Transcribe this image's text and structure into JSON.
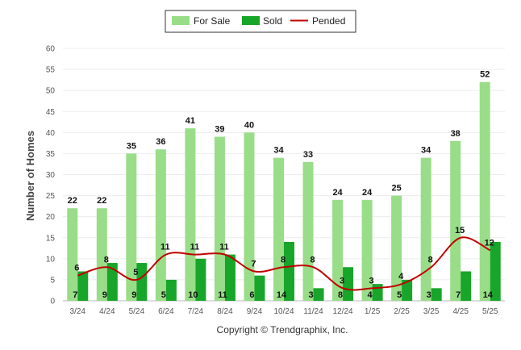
{
  "chart_data": {
    "type": "bar",
    "title": "",
    "xlabel": "",
    "ylabel": "Number of Homes",
    "ylim": [
      0,
      60
    ],
    "yticks": [
      0,
      5,
      10,
      15,
      20,
      25,
      30,
      35,
      40,
      45,
      50,
      55,
      60
    ],
    "categories": [
      "3/24",
      "4/24",
      "5/24",
      "6/24",
      "7/24",
      "8/24",
      "9/24",
      "10/24",
      "11/24",
      "12/24",
      "1/25",
      "2/25",
      "3/25",
      "4/25",
      "5/25"
    ],
    "series": [
      {
        "name": "For Sale",
        "type": "bar",
        "color": "#99dd88",
        "values": [
          22,
          22,
          35,
          36,
          41,
          39,
          40,
          34,
          33,
          24,
          24,
          25,
          34,
          38,
          52
        ]
      },
      {
        "name": "Sold",
        "type": "bar",
        "color": "#17a52a",
        "values": [
          7,
          9,
          9,
          5,
          10,
          11,
          6,
          14,
          3,
          8,
          4,
          5,
          3,
          7,
          14
        ]
      },
      {
        "name": "Pended",
        "type": "line",
        "color": "#c00000",
        "values": [
          6,
          8,
          5,
          11,
          11,
          11,
          7,
          8,
          8,
          3,
          3,
          4,
          8,
          15,
          12
        ]
      }
    ],
    "legend": "top-center",
    "grid": true
  },
  "footer": {
    "copyright": "Copyright © Trendgraphix, Inc."
  }
}
